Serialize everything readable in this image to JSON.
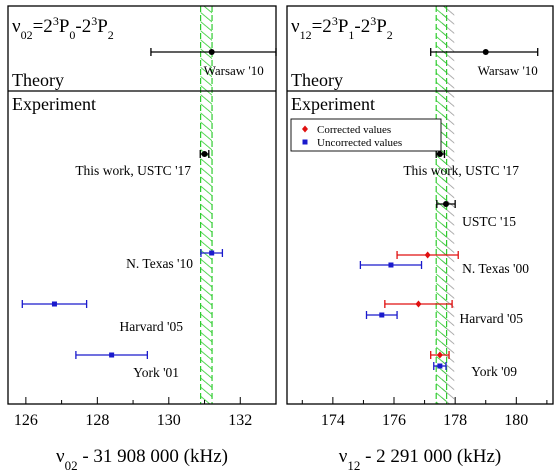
{
  "chart_data": [
    {
      "type": "scatter",
      "title_parts": [
        "ν",
        "02",
        "=2",
        "3",
        "P",
        "0",
        "-2",
        "3",
        "P",
        "2"
      ],
      "xlabel_parts": [
        "ν",
        "02",
        " - 31 908 000 (kHz)"
      ],
      "xlim": [
        125.5,
        133.0
      ],
      "xticks": [
        126,
        128,
        130,
        132
      ],
      "xtick_labels": [
        "126",
        "128",
        "130",
        "132"
      ],
      "band": {
        "center": 131.05,
        "half_width": 0.16,
        "color": "#2ecc2e",
        "hatched": true
      },
      "theory_label": "Theory",
      "experiment_label": "Experiment",
      "theory": [
        {
          "label": "Warsaw '10",
          "value": 131.2,
          "err_low": 1.7,
          "err_high": 1.8,
          "color": "#000000"
        }
      ],
      "experiment": [
        {
          "label": "This work, USTC '17",
          "value": 131.0,
          "err_low": 0.12,
          "err_high": 0.12,
          "color": "#000000",
          "marker": "circle"
        },
        {
          "label": "N. Texas '10",
          "value": 131.2,
          "err_low": 0.3,
          "err_high": 0.3,
          "color": "#1a1acc",
          "marker": "square"
        },
        {
          "label": "Harvard '05",
          "value": 126.8,
          "err_low": 0.9,
          "err_high": 0.9,
          "color": "#1a1acc",
          "marker": "square"
        },
        {
          "label": "York '01",
          "value": 128.4,
          "err_low": 1.0,
          "err_high": 1.0,
          "color": "#1a1acc",
          "marker": "square"
        }
      ]
    },
    {
      "type": "scatter",
      "title_parts": [
        "ν",
        "12",
        "=2",
        "3",
        "P",
        "1",
        "-2",
        "3",
        "P",
        "2"
      ],
      "xlabel_parts": [
        "ν",
        "12",
        " - 2 291 000 (kHz)"
      ],
      "xlim": [
        172.5,
        181.2
      ],
      "xticks": [
        174,
        176,
        178,
        180
      ],
      "xtick_labels": [
        "174",
        "176",
        "178",
        "180"
      ],
      "band": {
        "center": 177.55,
        "half_width": 0.17,
        "color": "#2ecc2e",
        "hatched": true
      },
      "band2": {
        "center": 177.77,
        "half_width": 0.2,
        "color": "#9a9a9a",
        "hatched": true
      },
      "theory_label": "Theory",
      "experiment_label": "Experiment",
      "legend": [
        {
          "label": "Corrected values",
          "color": "#e01010",
          "marker": "diamond"
        },
        {
          "label": "Uncorrected values",
          "color": "#1a1acc",
          "marker": "square"
        }
      ],
      "theory": [
        {
          "label": "Warsaw '10",
          "value": 179.0,
          "err_low": 1.8,
          "err_high": 1.7,
          "color": "#000000"
        }
      ],
      "experiment": [
        {
          "label": "This work, USTC '17",
          "values": [
            {
              "value": 177.5,
              "err_low": 0.12,
              "err_high": 0.15,
              "color": "#000000",
              "marker": "circle"
            }
          ]
        },
        {
          "label": "USTC '15",
          "values": [
            {
              "value": 177.7,
              "err_low": 0.3,
              "err_high": 0.3,
              "color": "#000000",
              "marker": "circle"
            }
          ]
        },
        {
          "label": "N. Texas '00",
          "values": [
            {
              "value": 177.1,
              "err_low": 1.0,
              "err_high": 1.0,
              "color": "#e01010",
              "marker": "diamond"
            },
            {
              "value": 175.9,
              "err_low": 1.0,
              "err_high": 1.0,
              "color": "#1a1acc",
              "marker": "square"
            }
          ]
        },
        {
          "label": "Harvard '05",
          "values": [
            {
              "value": 176.8,
              "err_low": 1.1,
              "err_high": 1.1,
              "color": "#e01010",
              "marker": "diamond"
            },
            {
              "value": 175.6,
              "err_low": 0.5,
              "err_high": 0.5,
              "color": "#1a1acc",
              "marker": "square"
            }
          ]
        },
        {
          "label": "York '09",
          "values": [
            {
              "value": 177.5,
              "err_low": 0.3,
              "err_high": 0.3,
              "color": "#e01010",
              "marker": "diamond"
            },
            {
              "value": 177.5,
              "err_low": 0.2,
              "err_high": 0.2,
              "color": "#1a1acc",
              "marker": "square"
            }
          ]
        }
      ]
    }
  ]
}
